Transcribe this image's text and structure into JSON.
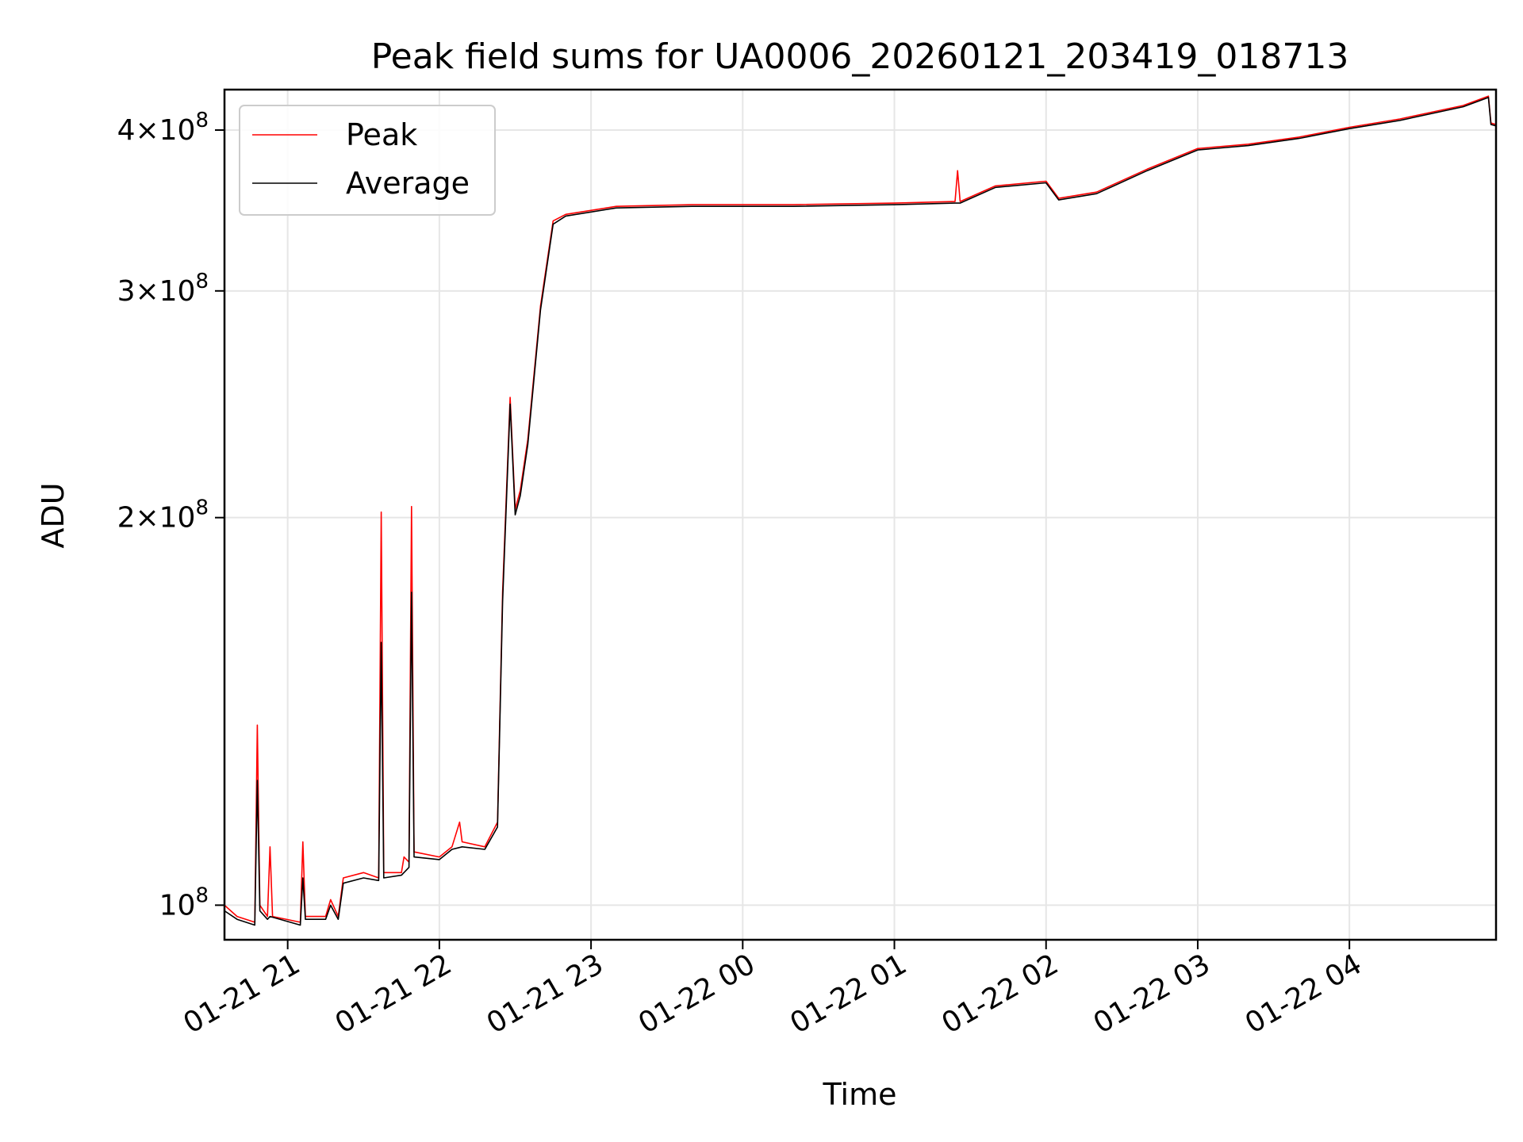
{
  "chart_data": {
    "type": "line",
    "title": "Peak field sums for UA0006_20260121_203419_018713",
    "xlabel": "Time",
    "ylabel": "ADU",
    "yscale": "log",
    "grid": true,
    "legend_placement": "top-left",
    "xlim": [
      "2026-01-21 20:35",
      "2026-01-22 04:58"
    ],
    "ylim": [
      94000000,
      430000000
    ],
    "x_ticks": [
      {
        "x": "2026-01-21 21:00",
        "label": "01-21 21"
      },
      {
        "x": "2026-01-21 22:00",
        "label": "01-21 22"
      },
      {
        "x": "2026-01-21 23:00",
        "label": "01-21 23"
      },
      {
        "x": "2026-01-22 00:00",
        "label": "01-22 00"
      },
      {
        "x": "2026-01-22 01:00",
        "label": "01-22 01"
      },
      {
        "x": "2026-01-22 02:00",
        "label": "01-22 02"
      },
      {
        "x": "2026-01-22 03:00",
        "label": "01-22 03"
      },
      {
        "x": "2026-01-22 04:00",
        "label": "01-22 04"
      }
    ],
    "y_ticks": [
      {
        "value": 100000000,
        "mantissa": "",
        "exponent": "8"
      },
      {
        "value": 200000000,
        "mantissa": "2",
        "exponent": "8"
      },
      {
        "value": 300000000,
        "mantissa": "3",
        "exponent": "8"
      },
      {
        "value": 400000000,
        "mantissa": "4",
        "exponent": "8"
      }
    ],
    "series": [
      {
        "name": "Peak",
        "color": "#ff0000",
        "points": [
          [
            "2026-01-21 20:35",
            100000000
          ],
          [
            "2026-01-21 20:40",
            98000000
          ],
          [
            "2026-01-21 20:47",
            97000000
          ],
          [
            "2026-01-21 20:48",
            138000000
          ],
          [
            "2026-01-21 20:49",
            100000000
          ],
          [
            "2026-01-21 20:52",
            98000000
          ],
          [
            "2026-01-21 20:53",
            111000000
          ],
          [
            "2026-01-21 20:54",
            98000000
          ],
          [
            "2026-01-21 21:05",
            97000000
          ],
          [
            "2026-01-21 21:06",
            112000000
          ],
          [
            "2026-01-21 21:07",
            98000000
          ],
          [
            "2026-01-21 21:15",
            98000000
          ],
          [
            "2026-01-21 21:17",
            101000000
          ],
          [
            "2026-01-21 21:20",
            98000000
          ],
          [
            "2026-01-21 21:22",
            105000000
          ],
          [
            "2026-01-21 21:30",
            106000000
          ],
          [
            "2026-01-21 21:36",
            105000000
          ],
          [
            "2026-01-21 21:37",
            202000000
          ],
          [
            "2026-01-21 21:38",
            106000000
          ],
          [
            "2026-01-21 21:45",
            106000000
          ],
          [
            "2026-01-21 21:46",
            109000000
          ],
          [
            "2026-01-21 21:48",
            108000000
          ],
          [
            "2026-01-21 21:49",
            204000000
          ],
          [
            "2026-01-21 21:50",
            110000000
          ],
          [
            "2026-01-21 22:00",
            109000000
          ],
          [
            "2026-01-21 22:05",
            111000000
          ],
          [
            "2026-01-21 22:08",
            116000000
          ],
          [
            "2026-01-21 22:09",
            112000000
          ],
          [
            "2026-01-21 22:18",
            111000000
          ],
          [
            "2026-01-21 22:23",
            116000000
          ],
          [
            "2026-01-21 22:25",
            175000000
          ],
          [
            "2026-01-21 22:28",
            248000000
          ],
          [
            "2026-01-21 22:30",
            203000000
          ],
          [
            "2026-01-21 22:32",
            210000000
          ],
          [
            "2026-01-21 22:35",
            230000000
          ],
          [
            "2026-01-21 22:40",
            292000000
          ],
          [
            "2026-01-21 22:45",
            340000000
          ],
          [
            "2026-01-21 22:50",
            344000000
          ],
          [
            "2026-01-21 23:10",
            349000000
          ],
          [
            "2026-01-21 23:40",
            350000000
          ],
          [
            "2026-01-22 00:20",
            350000000
          ],
          [
            "2026-01-22 01:00",
            351000000
          ],
          [
            "2026-01-22 01:24",
            352000000
          ],
          [
            "2026-01-22 01:25",
            372000000
          ],
          [
            "2026-01-22 01:26",
            352000000
          ],
          [
            "2026-01-22 01:40",
            362000000
          ],
          [
            "2026-01-22 02:00",
            365000000
          ],
          [
            "2026-01-22 02:05",
            354000000
          ],
          [
            "2026-01-22 02:20",
            358000000
          ],
          [
            "2026-01-22 02:40",
            373000000
          ],
          [
            "2026-01-22 03:00",
            387000000
          ],
          [
            "2026-01-22 03:20",
            390000000
          ],
          [
            "2026-01-22 03:40",
            395000000
          ],
          [
            "2026-01-22 04:00",
            402000000
          ],
          [
            "2026-01-22 04:20",
            408000000
          ],
          [
            "2026-01-22 04:45",
            418000000
          ],
          [
            "2026-01-22 04:55",
            425000000
          ],
          [
            "2026-01-22 04:56",
            405000000
          ],
          [
            "2026-01-22 04:58",
            404000000
          ]
        ]
      },
      {
        "name": "Average",
        "color": "#000000",
        "points": [
          [
            "2026-01-21 20:35",
            99000000
          ],
          [
            "2026-01-21 20:40",
            97500000
          ],
          [
            "2026-01-21 20:47",
            96500000
          ],
          [
            "2026-01-21 20:48",
            125000000
          ],
          [
            "2026-01-21 20:49",
            99000000
          ],
          [
            "2026-01-21 20:52",
            97500000
          ],
          [
            "2026-01-21 20:53",
            98000000
          ],
          [
            "2026-01-21 21:05",
            96500000
          ],
          [
            "2026-01-21 21:06",
            105000000
          ],
          [
            "2026-01-21 21:07",
            97500000
          ],
          [
            "2026-01-21 21:15",
            97500000
          ],
          [
            "2026-01-21 21:17",
            100000000
          ],
          [
            "2026-01-21 21:20",
            97500000
          ],
          [
            "2026-01-21 21:22",
            104000000
          ],
          [
            "2026-01-21 21:30",
            105000000
          ],
          [
            "2026-01-21 21:36",
            104500000
          ],
          [
            "2026-01-21 21:37",
            160000000
          ],
          [
            "2026-01-21 21:38",
            105000000
          ],
          [
            "2026-01-21 21:45",
            105500000
          ],
          [
            "2026-01-21 21:48",
            107000000
          ],
          [
            "2026-01-21 21:49",
            175000000
          ],
          [
            "2026-01-21 21:50",
            109000000
          ],
          [
            "2026-01-21 22:00",
            108500000
          ],
          [
            "2026-01-21 22:05",
            110500000
          ],
          [
            "2026-01-21 22:09",
            111000000
          ],
          [
            "2026-01-21 22:18",
            110500000
          ],
          [
            "2026-01-21 22:23",
            115000000
          ],
          [
            "2026-01-21 22:25",
            172000000
          ],
          [
            "2026-01-21 22:28",
            245000000
          ],
          [
            "2026-01-21 22:30",
            201000000
          ],
          [
            "2026-01-21 22:32",
            208000000
          ],
          [
            "2026-01-21 22:35",
            228000000
          ],
          [
            "2026-01-21 22:40",
            290000000
          ],
          [
            "2026-01-21 22:45",
            338000000
          ],
          [
            "2026-01-21 22:50",
            343000000
          ],
          [
            "2026-01-21 23:10",
            348000000
          ],
          [
            "2026-01-21 23:40",
            349000000
          ],
          [
            "2026-01-22 00:20",
            349000000
          ],
          [
            "2026-01-22 01:00",
            350000000
          ],
          [
            "2026-01-22 01:24",
            351000000
          ],
          [
            "2026-01-22 01:26",
            351000000
          ],
          [
            "2026-01-22 01:40",
            361000000
          ],
          [
            "2026-01-22 02:00",
            364000000
          ],
          [
            "2026-01-22 02:05",
            353000000
          ],
          [
            "2026-01-22 02:20",
            357000000
          ],
          [
            "2026-01-22 02:40",
            372000000
          ],
          [
            "2026-01-22 03:00",
            386000000
          ],
          [
            "2026-01-22 03:20",
            389000000
          ],
          [
            "2026-01-22 03:40",
            394000000
          ],
          [
            "2026-01-22 04:00",
            401000000
          ],
          [
            "2026-01-22 04:20",
            407000000
          ],
          [
            "2026-01-22 04:45",
            417000000
          ],
          [
            "2026-01-22 04:55",
            424000000
          ],
          [
            "2026-01-22 04:56",
            404000000
          ],
          [
            "2026-01-22 04:58",
            403000000
          ]
        ]
      }
    ]
  }
}
